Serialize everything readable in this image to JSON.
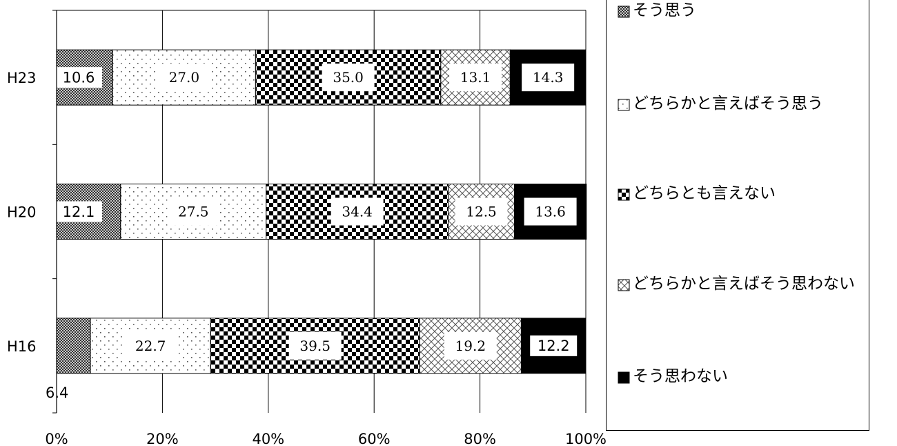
{
  "chart_data": {
    "type": "bar",
    "orientation": "horizontal",
    "stacked": "percent",
    "categories": [
      "H23",
      "H20",
      "H16"
    ],
    "series": [
      {
        "name": "そう思う",
        "values": [
          10.6,
          12.1,
          6.4
        ],
        "pattern": "dense-dots"
      },
      {
        "name": "どちらかと言えばそう思う",
        "values": [
          27.0,
          27.5,
          22.7
        ],
        "pattern": "sparse-dots"
      },
      {
        "name": "どちらとも言えない",
        "values": [
          35.0,
          34.4,
          39.5
        ],
        "pattern": "checkerboard"
      },
      {
        "name": "どちらかと言えばそう思わない",
        "values": [
          13.1,
          12.5,
          19.2
        ],
        "pattern": "crosshatch"
      },
      {
        "name": "そう思わない",
        "values": [
          14.3,
          13.6,
          12.2
        ],
        "pattern": "solid-black"
      }
    ],
    "data_labels": [
      [
        "10.6",
        "27.0",
        "35.0",
        "13.1",
        "14.3"
      ],
      [
        "12.1",
        "27.5",
        "34.4",
        "12.5",
        "13.6"
      ],
      [
        "6.4",
        "22.7",
        "39.5",
        "19.2",
        "12.2"
      ]
    ],
    "xticks": [
      "0%",
      "20%",
      "40%",
      "60%",
      "80%",
      "100%"
    ],
    "xlim": [
      0,
      100
    ],
    "grid": "vertical",
    "legend_position": "right",
    "title": "",
    "xlabel": "",
    "ylabel": ""
  }
}
